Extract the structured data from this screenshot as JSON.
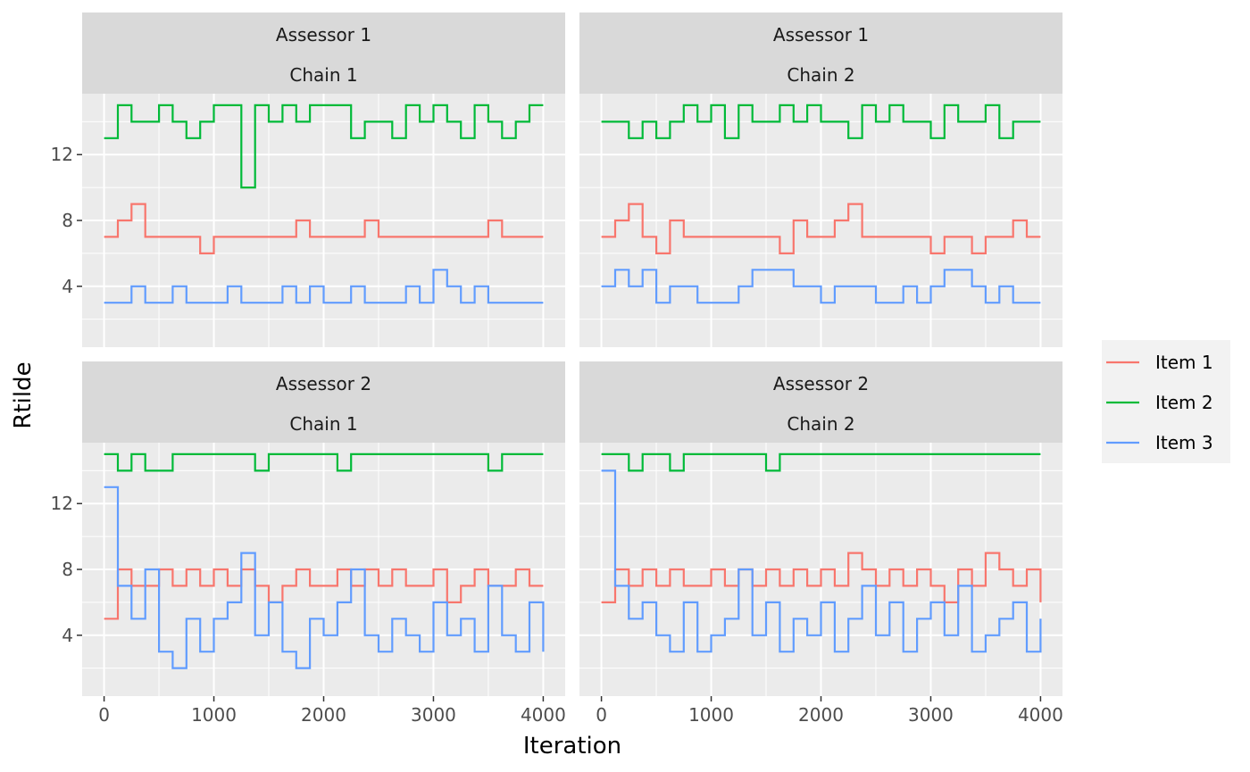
{
  "chart_data": {
    "type": "line",
    "xlabel": "Iteration",
    "ylabel": "Rtilde",
    "xlim": [
      -200,
      4200
    ],
    "ylim": [
      0.3,
      15.7
    ],
    "x_ticks": [
      0,
      1000,
      2000,
      3000,
      4000
    ],
    "y_ticks": [
      4,
      8,
      12
    ],
    "grid": true,
    "legend_position": "right",
    "colors": {
      "Item 1": "#F8766D",
      "Item 2": "#00BA38",
      "Item 3": "#619CFF"
    },
    "legend": [
      "Item 1",
      "Item 2",
      "Item 3"
    ],
    "x": [
      0,
      125,
      250,
      375,
      500,
      625,
      750,
      875,
      1000,
      1125,
      1250,
      1375,
      1500,
      1625,
      1750,
      1875,
      2000,
      2125,
      2250,
      2375,
      2500,
      2625,
      2750,
      2875,
      3000,
      3125,
      3250,
      3375,
      3500,
      3625,
      3750,
      3875,
      4000
    ],
    "panels": [
      {
        "strip": [
          "Assessor 1",
          "Chain 1"
        ],
        "series": [
          {
            "name": "Item 1",
            "values": [
              7,
              8,
              9,
              7,
              7,
              7,
              7,
              6,
              7,
              7,
              7,
              7,
              7,
              7,
              8,
              7,
              7,
              7,
              7,
              8,
              7,
              7,
              7,
              7,
              7,
              7,
              7,
              7,
              8,
              7,
              7,
              7,
              7
            ]
          },
          {
            "name": "Item 2",
            "values": [
              13,
              15,
              14,
              14,
              15,
              14,
              13,
              14,
              15,
              15,
              10,
              15,
              14,
              15,
              14,
              15,
              15,
              15,
              13,
              14,
              14,
              13,
              15,
              14,
              15,
              14,
              13,
              15,
              14,
              13,
              14,
              15,
              15
            ]
          },
          {
            "name": "Item 3",
            "values": [
              3,
              3,
              4,
              3,
              3,
              4,
              3,
              3,
              3,
              4,
              3,
              3,
              3,
              4,
              3,
              4,
              3,
              3,
              4,
              3,
              3,
              3,
              4,
              3,
              5,
              4,
              3,
              4,
              3,
              3,
              3,
              3,
              3
            ]
          }
        ]
      },
      {
        "strip": [
          "Assessor 1",
          "Chain 2"
        ],
        "series": [
          {
            "name": "Item 1",
            "values": [
              7,
              8,
              9,
              7,
              6,
              8,
              7,
              7,
              7,
              7,
              7,
              7,
              7,
              6,
              8,
              7,
              7,
              8,
              9,
              7,
              7,
              7,
              7,
              7,
              6,
              7,
              7,
              6,
              7,
              7,
              8,
              7,
              7
            ]
          },
          {
            "name": "Item 2",
            "values": [
              14,
              14,
              13,
              14,
              13,
              14,
              15,
              14,
              15,
              13,
              15,
              14,
              14,
              15,
              14,
              15,
              14,
              14,
              13,
              15,
              14,
              15,
              14,
              14,
              13,
              15,
              14,
              14,
              15,
              13,
              14,
              14,
              14
            ]
          },
          {
            "name": "Item 3",
            "values": [
              4,
              5,
              4,
              5,
              3,
              4,
              4,
              3,
              3,
              3,
              4,
              5,
              5,
              5,
              4,
              4,
              3,
              4,
              4,
              4,
              3,
              3,
              4,
              3,
              4,
              5,
              5,
              4,
              3,
              4,
              3,
              3,
              3
            ]
          }
        ]
      },
      {
        "strip": [
          "Assessor 2",
          "Chain 1"
        ],
        "series": [
          {
            "name": "Item 1",
            "values": [
              5,
              8,
              7,
              7,
              8,
              7,
              8,
              7,
              8,
              7,
              8,
              7,
              6,
              7,
              8,
              7,
              7,
              8,
              7,
              8,
              7,
              8,
              7,
              7,
              8,
              6,
              7,
              8,
              7,
              7,
              8,
              7,
              7
            ]
          },
          {
            "name": "Item 2",
            "values": [
              15,
              14,
              15,
              14,
              14,
              15,
              15,
              15,
              15,
              15,
              15,
              14,
              15,
              15,
              15,
              15,
              15,
              14,
              15,
              15,
              15,
              15,
              15,
              15,
              15,
              15,
              15,
              15,
              14,
              15,
              15,
              15,
              15
            ]
          },
          {
            "name": "Item 3",
            "values": [
              13,
              7,
              5,
              8,
              3,
              2,
              5,
              3,
              5,
              6,
              9,
              4,
              6,
              3,
              2,
              5,
              4,
              6,
              8,
              4,
              3,
              5,
              4,
              3,
              6,
              4,
              5,
              3,
              7,
              4,
              3,
              6,
              3
            ]
          }
        ]
      },
      {
        "strip": [
          "Assessor 2",
          "Chain 2"
        ],
        "series": [
          {
            "name": "Item 1",
            "values": [
              6,
              8,
              7,
              8,
              7,
              8,
              7,
              7,
              8,
              7,
              8,
              7,
              8,
              7,
              8,
              7,
              8,
              7,
              9,
              8,
              7,
              8,
              7,
              8,
              7,
              6,
              8,
              7,
              9,
              8,
              7,
              8,
              6
            ]
          },
          {
            "name": "Item 2",
            "values": [
              15,
              15,
              14,
              15,
              15,
              14,
              15,
              15,
              15,
              15,
              15,
              15,
              14,
              15,
              15,
              15,
              15,
              15,
              15,
              15,
              15,
              15,
              15,
              15,
              15,
              15,
              15,
              15,
              15,
              15,
              15,
              15,
              15
            ]
          },
          {
            "name": "Item 3",
            "values": [
              14,
              7,
              5,
              6,
              4,
              3,
              6,
              3,
              4,
              5,
              8,
              4,
              6,
              3,
              5,
              4,
              6,
              3,
              5,
              7,
              4,
              6,
              3,
              5,
              6,
              4,
              7,
              3,
              4,
              5,
              6,
              3,
              5
            ]
          }
        ]
      }
    ]
  }
}
